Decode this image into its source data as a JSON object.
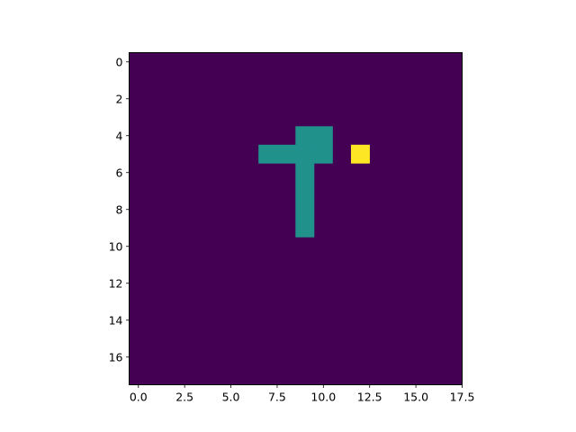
{
  "chart_data": {
    "type": "heatmap",
    "title": "",
    "xlabel": "",
    "ylabel": "",
    "rows": 18,
    "cols": 18,
    "colormap": "viridis",
    "value_range": [
      0,
      2
    ],
    "colors": {
      "0": "#440154",
      "1": "#21918c",
      "2": "#fde725"
    },
    "cells": [
      {
        "row": 4,
        "col": 9,
        "value": 1
      },
      {
        "row": 4,
        "col": 10,
        "value": 1
      },
      {
        "row": 5,
        "col": 7,
        "value": 1
      },
      {
        "row": 5,
        "col": 8,
        "value": 1
      },
      {
        "row": 5,
        "col": 9,
        "value": 1
      },
      {
        "row": 5,
        "col": 10,
        "value": 1
      },
      {
        "row": 5,
        "col": 12,
        "value": 2
      },
      {
        "row": 6,
        "col": 9,
        "value": 1
      },
      {
        "row": 7,
        "col": 9,
        "value": 1
      },
      {
        "row": 8,
        "col": 9,
        "value": 1
      },
      {
        "row": 9,
        "col": 9,
        "value": 1
      }
    ],
    "xlim": [
      -0.5,
      17.5
    ],
    "ylim": [
      17.5,
      -0.5
    ],
    "x_ticks": [
      0,
      2.5,
      5,
      7.5,
      10,
      12.5,
      15,
      17.5
    ],
    "x_tick_labels": [
      "0.0",
      "2.5",
      "5.0",
      "7.5",
      "10.0",
      "12.5",
      "15.0",
      "17.5"
    ],
    "y_ticks": [
      0,
      2,
      4,
      6,
      8,
      10,
      12,
      14,
      16
    ],
    "y_tick_labels": [
      "0",
      "2",
      "4",
      "6",
      "8",
      "10",
      "12",
      "14",
      "16"
    ],
    "grid": false
  }
}
